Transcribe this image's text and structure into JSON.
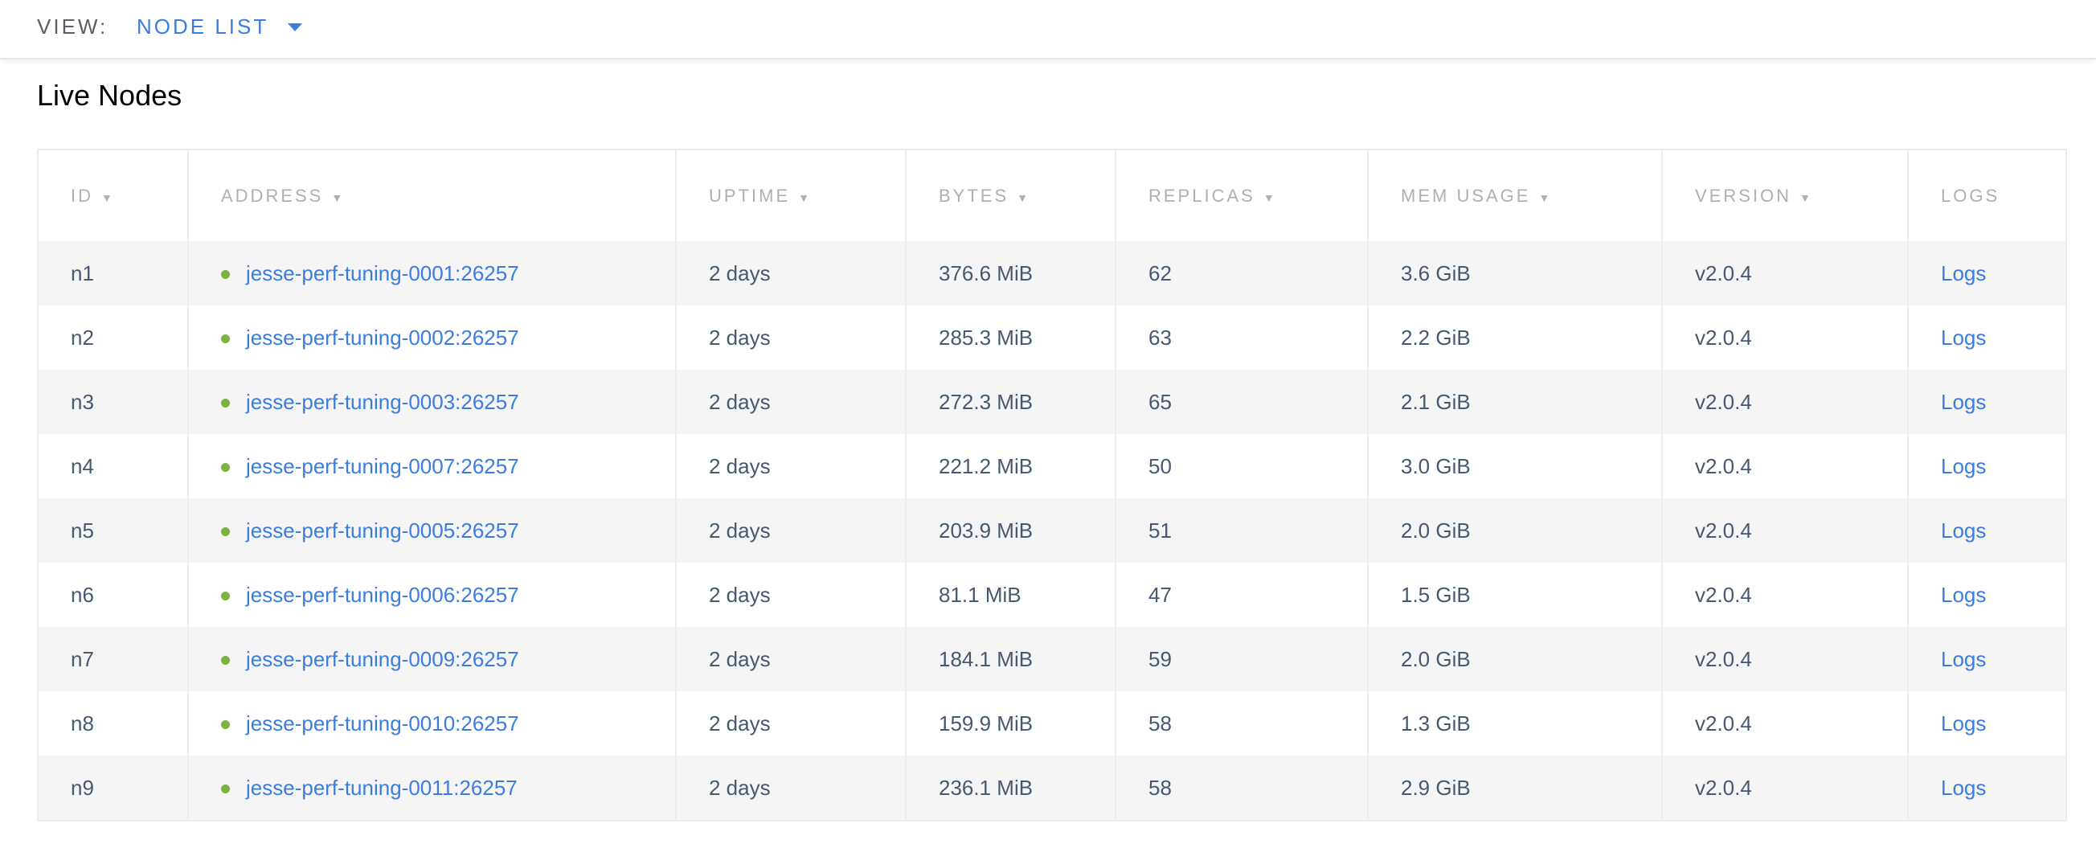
{
  "header": {
    "view_label": "VIEW:",
    "view_value": "NODE LIST"
  },
  "title": "Live Nodes",
  "columns": [
    {
      "label": "ID",
      "sortable": true
    },
    {
      "label": "ADDRESS",
      "sortable": true
    },
    {
      "label": "UPTIME",
      "sortable": true
    },
    {
      "label": "BYTES",
      "sortable": true
    },
    {
      "label": "REPLICAS",
      "sortable": true
    },
    {
      "label": "MEM USAGE",
      "sortable": true
    },
    {
      "label": "VERSION",
      "sortable": true
    },
    {
      "label": "LOGS",
      "sortable": false
    }
  ],
  "sort_glyph": "▼",
  "rows": [
    {
      "id": "n1",
      "address": "jesse-perf-tuning-0001:26257",
      "uptime": "2 days",
      "bytes": "376.6 MiB",
      "replicas": "62",
      "mem": "3.6 GiB",
      "version": "v2.0.4",
      "logs": "Logs"
    },
    {
      "id": "n2",
      "address": "jesse-perf-tuning-0002:26257",
      "uptime": "2 days",
      "bytes": "285.3 MiB",
      "replicas": "63",
      "mem": "2.2 GiB",
      "version": "v2.0.4",
      "logs": "Logs"
    },
    {
      "id": "n3",
      "address": "jesse-perf-tuning-0003:26257",
      "uptime": "2 days",
      "bytes": "272.3 MiB",
      "replicas": "65",
      "mem": "2.1 GiB",
      "version": "v2.0.4",
      "logs": "Logs"
    },
    {
      "id": "n4",
      "address": "jesse-perf-tuning-0007:26257",
      "uptime": "2 days",
      "bytes": "221.2 MiB",
      "replicas": "50",
      "mem": "3.0 GiB",
      "version": "v2.0.4",
      "logs": "Logs"
    },
    {
      "id": "n5",
      "address": "jesse-perf-tuning-0005:26257",
      "uptime": "2 days",
      "bytes": "203.9 MiB",
      "replicas": "51",
      "mem": "2.0 GiB",
      "version": "v2.0.4",
      "logs": "Logs"
    },
    {
      "id": "n6",
      "address": "jesse-perf-tuning-0006:26257",
      "uptime": "2 days",
      "bytes": "81.1 MiB",
      "replicas": "47",
      "mem": "1.5 GiB",
      "version": "v2.0.4",
      "logs": "Logs"
    },
    {
      "id": "n7",
      "address": "jesse-perf-tuning-0009:26257",
      "uptime": "2 days",
      "bytes": "184.1 MiB",
      "replicas": "59",
      "mem": "2.0 GiB",
      "version": "v2.0.4",
      "logs": "Logs"
    },
    {
      "id": "n8",
      "address": "jesse-perf-tuning-0010:26257",
      "uptime": "2 days",
      "bytes": "159.9 MiB",
      "replicas": "58",
      "mem": "1.3 GiB",
      "version": "v2.0.4",
      "logs": "Logs"
    },
    {
      "id": "n9",
      "address": "jesse-perf-tuning-0011:26257",
      "uptime": "2 days",
      "bytes": "236.1 MiB",
      "replicas": "58",
      "mem": "2.9 GiB",
      "version": "v2.0.4",
      "logs": "Logs"
    }
  ],
  "colors": {
    "accent": "#3a7de1",
    "status_live": "#7cb342",
    "text": "#475872",
    "header_text": "#b0b0b0",
    "stripe": "#f5f5f5"
  }
}
